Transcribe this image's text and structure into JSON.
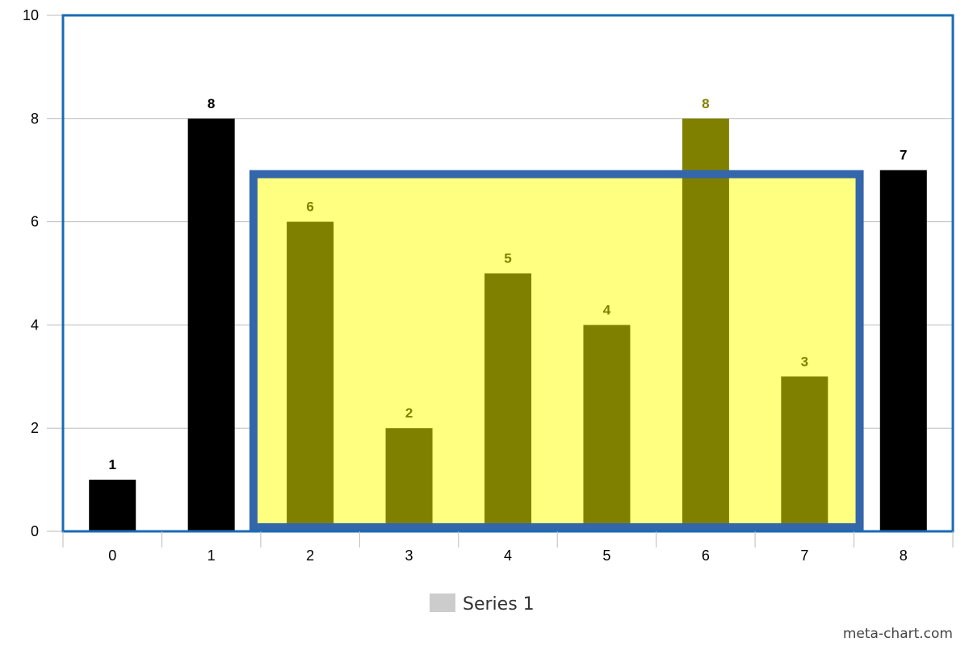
{
  "chart_data": {
    "type": "bar",
    "categories": [
      "0",
      "1",
      "2",
      "3",
      "4",
      "5",
      "6",
      "7",
      "8"
    ],
    "series": [
      {
        "name": "Series 1",
        "values": [
          1,
          8,
          6,
          2,
          5,
          4,
          8,
          3,
          7
        ]
      }
    ],
    "ylim": [
      0,
      10
    ],
    "yticks": [
      0,
      2,
      4,
      6,
      8,
      10
    ],
    "grid": true,
    "legend_placement": "bottom",
    "highlight_range": {
      "from_category": "2",
      "to_category": "7",
      "level": 7
    },
    "colors": {
      "bar": "#000000",
      "bar_highlighted": "#808000",
      "highlight_fill": "#ffff80",
      "highlight_border": "#3366aa",
      "label_highlighted": "#808000",
      "plot_border": "#1a6bb5",
      "grid": "#bbbbbb",
      "legend_swatch": "#cccccc"
    }
  },
  "legend": {
    "label": "Series 1"
  },
  "credit": "meta-chart.com"
}
